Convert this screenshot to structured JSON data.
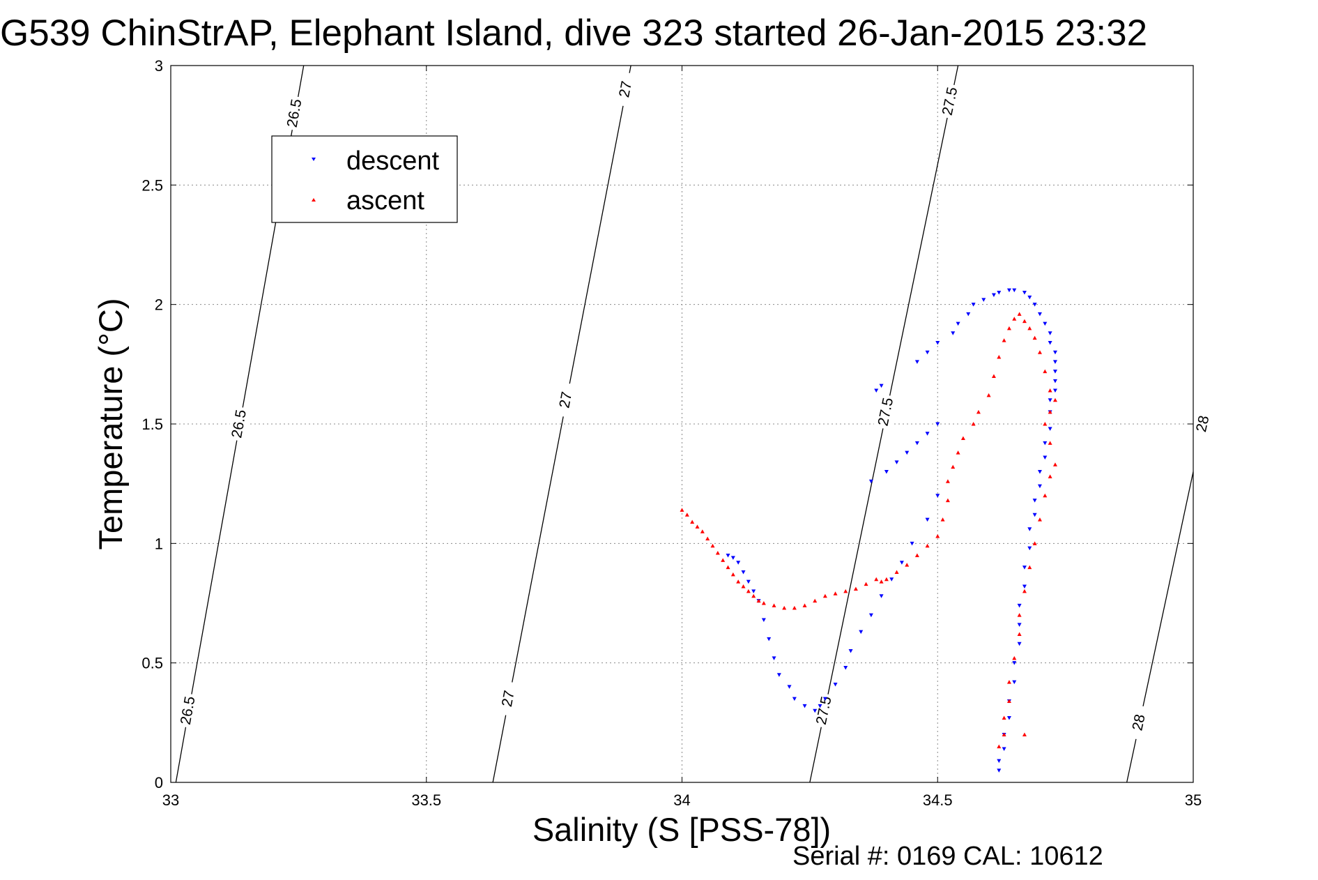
{
  "chart_data": {
    "type": "scatter",
    "title": "G539 ChinStrAP, Elephant Island, dive 323 started 26-Jan-2015 23:32",
    "xlabel": "Salinity (S [PSS-78])",
    "ylabel": "Temperature (°C)",
    "xlim": [
      33,
      35
    ],
    "ylim": [
      0,
      3
    ],
    "xticks": [
      33,
      33.5,
      34,
      34.5,
      35
    ],
    "xtick_labels": [
      "33",
      "33.5",
      "34",
      "34.5",
      "35"
    ],
    "yticks": [
      0,
      0.5,
      1,
      1.5,
      2,
      2.5,
      3
    ],
    "ytick_labels": [
      "0",
      "0.5",
      "1",
      "1.5",
      "2",
      "2.5",
      "3"
    ],
    "grid": true,
    "legend_position": "top-left",
    "footer": "Serial #: 0169 CAL: 10612",
    "isopycnals": [
      {
        "label": "26.5",
        "s_at_t0": 33.01,
        "s_at_t3": 33.26,
        "label_temps": [
          0.3,
          1.5,
          2.8
        ]
      },
      {
        "label": "27",
        "s_at_t0": 33.63,
        "s_at_t3": 33.9,
        "label_temps": [
          0.35,
          1.6,
          2.9
        ]
      },
      {
        "label": "27.5",
        "s_at_t0": 34.25,
        "s_at_t3": 34.54,
        "label_temps": [
          0.3,
          1.55,
          2.85
        ]
      },
      {
        "label": "28",
        "s_at_t0": 34.87,
        "s_at_t3": 35.17,
        "label_temps": [
          0.25,
          1.5
        ]
      }
    ],
    "series": [
      {
        "name": "descent",
        "color": "#0000ff",
        "marker": "triangle-down",
        "x": [
          34.62,
          34.62,
          34.63,
          34.63,
          34.64,
          34.64,
          34.65,
          34.65,
          34.66,
          34.66,
          34.66,
          34.67,
          34.67,
          34.68,
          34.68,
          34.69,
          34.69,
          34.7,
          34.7,
          34.71,
          34.71,
          34.72,
          34.72,
          34.72,
          34.73,
          34.73,
          34.73,
          34.73,
          34.73,
          34.72,
          34.72,
          34.71,
          34.7,
          34.69,
          34.68,
          34.67,
          34.65,
          34.64,
          34.62,
          34.61,
          34.59,
          34.57,
          34.56,
          34.54,
          34.53,
          34.5,
          34.48,
          34.46,
          34.5,
          34.48,
          34.46,
          34.44,
          34.42,
          34.4,
          34.37,
          34.38,
          34.39,
          34.5,
          34.48,
          34.45,
          34.43,
          34.41,
          34.39,
          34.37,
          34.35,
          34.33,
          34.32,
          34.3,
          34.28,
          34.27,
          34.26,
          34.24,
          34.22,
          34.21,
          34.19,
          34.18,
          34.17,
          34.16,
          34.15,
          34.14,
          34.13,
          34.12,
          34.11,
          34.1,
          34.09
        ],
        "y": [
          0.05,
          0.09,
          0.14,
          0.2,
          0.27,
          0.34,
          0.42,
          0.5,
          0.58,
          0.66,
          0.74,
          0.82,
          0.9,
          0.98,
          1.06,
          1.12,
          1.18,
          1.24,
          1.3,
          1.36,
          1.42,
          1.48,
          1.55,
          1.6,
          1.64,
          1.68,
          1.72,
          1.76,
          1.8,
          1.84,
          1.88,
          1.92,
          1.96,
          2.0,
          2.03,
          2.05,
          2.06,
          2.06,
          2.05,
          2.04,
          2.02,
          2.0,
          1.96,
          1.92,
          1.88,
          1.84,
          1.8,
          1.76,
          1.5,
          1.46,
          1.42,
          1.38,
          1.34,
          1.3,
          1.26,
          1.64,
          1.66,
          1.2,
          1.1,
          1.0,
          0.92,
          0.85,
          0.78,
          0.7,
          0.63,
          0.55,
          0.48,
          0.41,
          0.35,
          0.32,
          0.3,
          0.32,
          0.35,
          0.4,
          0.45,
          0.52,
          0.6,
          0.68,
          0.76,
          0.8,
          0.84,
          0.88,
          0.92,
          0.94,
          0.95
        ]
      },
      {
        "name": "ascent",
        "color": "#ff0000",
        "marker": "triangle-up",
        "x": [
          34.0,
          34.01,
          34.02,
          34.03,
          34.04,
          34.05,
          34.06,
          34.07,
          34.08,
          34.09,
          34.1,
          34.11,
          34.12,
          34.13,
          34.14,
          34.15,
          34.16,
          34.18,
          34.2,
          34.22,
          34.24,
          34.26,
          34.28,
          34.3,
          34.32,
          34.34,
          34.36,
          34.38,
          34.39,
          34.4,
          34.42,
          34.44,
          34.46,
          34.48,
          34.5,
          34.51,
          34.52,
          34.52,
          34.53,
          34.54,
          34.55,
          34.57,
          34.58,
          34.6,
          34.61,
          34.62,
          34.63,
          34.64,
          34.65,
          34.66,
          34.67,
          34.68,
          34.69,
          34.7,
          34.71,
          34.72,
          34.73,
          34.72,
          34.71,
          34.72,
          34.73,
          34.72,
          34.71,
          34.7,
          34.69,
          34.68,
          34.67,
          34.66,
          34.66,
          34.65,
          34.64,
          34.64,
          34.63,
          34.63,
          34.62,
          34.67
        ],
        "y": [
          1.14,
          1.12,
          1.09,
          1.07,
          1.05,
          1.02,
          0.99,
          0.96,
          0.93,
          0.9,
          0.87,
          0.84,
          0.82,
          0.8,
          0.78,
          0.76,
          0.75,
          0.74,
          0.73,
          0.73,
          0.74,
          0.76,
          0.78,
          0.79,
          0.8,
          0.81,
          0.83,
          0.85,
          0.84,
          0.85,
          0.88,
          0.91,
          0.95,
          0.99,
          1.03,
          1.1,
          1.18,
          1.26,
          1.32,
          1.38,
          1.44,
          1.5,
          1.55,
          1.62,
          1.7,
          1.78,
          1.85,
          1.9,
          1.94,
          1.96,
          1.93,
          1.9,
          1.86,
          1.8,
          1.72,
          1.64,
          1.6,
          1.55,
          1.5,
          1.42,
          1.33,
          1.28,
          1.2,
          1.1,
          1.0,
          0.9,
          0.8,
          0.7,
          0.62,
          0.52,
          0.42,
          0.34,
          0.27,
          0.2,
          0.15,
          0.2
        ]
      }
    ]
  }
}
